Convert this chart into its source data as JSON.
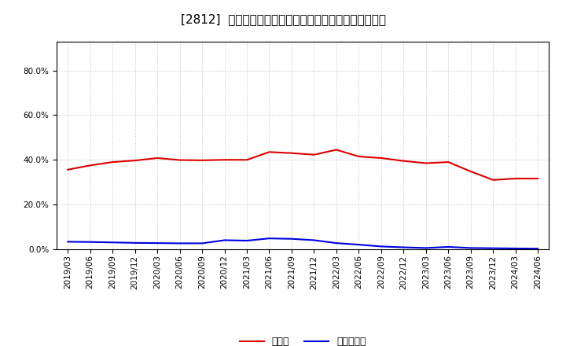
{
  "title": "[2812]  現預金、有利子負債の総資産に対する比率の推移",
  "x_labels": [
    "2019/03",
    "2019/06",
    "2019/09",
    "2019/12",
    "2020/03",
    "2020/06",
    "2020/09",
    "2020/12",
    "2021/03",
    "2021/06",
    "2021/09",
    "2021/12",
    "2022/03",
    "2022/06",
    "2022/09",
    "2022/12",
    "2023/03",
    "2023/06",
    "2023/09",
    "2023/12",
    "2024/03",
    "2024/06"
  ],
  "cash": [
    0.356,
    0.375,
    0.39,
    0.397,
    0.408,
    0.399,
    0.398,
    0.4,
    0.4,
    0.435,
    0.43,
    0.423,
    0.445,
    0.415,
    0.408,
    0.395,
    0.385,
    0.39,
    0.348,
    0.31,
    0.316,
    0.316
  ],
  "debt": [
    0.033,
    0.032,
    0.03,
    0.028,
    0.027,
    0.026,
    0.026,
    0.04,
    0.038,
    0.048,
    0.046,
    0.04,
    0.027,
    0.02,
    0.012,
    0.008,
    0.005,
    0.01,
    0.005,
    0.004,
    0.003,
    0.002
  ],
  "cash_color": "#dd0000",
  "debt_color": "#0000dd",
  "legend_cash": "現預金",
  "legend_debt": "有利子負債",
  "ylim": [
    0.0,
    0.93
  ],
  "yticks": [
    0.0,
    0.2,
    0.4,
    0.6,
    0.8
  ],
  "bg_color": "#ffffff",
  "plot_bg_color": "#ffffff",
  "grid_color": "#aaaaaa",
  "title_fontsize": 11,
  "legend_fontsize": 9,
  "tick_fontsize": 7.5
}
